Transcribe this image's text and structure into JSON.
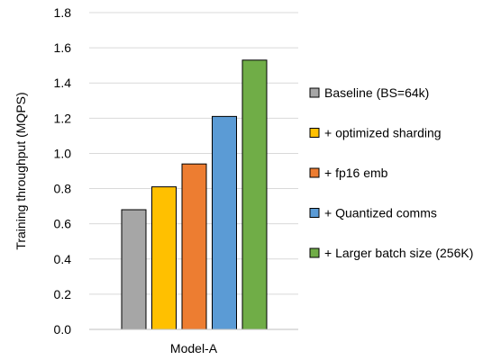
{
  "chart_data": {
    "type": "bar",
    "title": "",
    "xlabel": "",
    "ylabel": "Training throughput (MQPS)",
    "categories": [
      "Model-A"
    ],
    "ylim": [
      0,
      1.8
    ],
    "ytick_step": 0.2,
    "ytick_labels": [
      "0.0",
      "0.2",
      "0.4",
      "0.6",
      "0.8",
      "1.0",
      "1.2",
      "1.4",
      "1.6",
      "1.8"
    ],
    "grid": true,
    "legend_position": "right",
    "series": [
      {
        "name": "Baseline (BS=64k)",
        "values": [
          0.68
        ],
        "color": "#A6A6A6"
      },
      {
        "name": "+ optimized sharding",
        "values": [
          0.81
        ],
        "color": "#FFC000"
      },
      {
        "name": "+ fp16 emb",
        "values": [
          0.94
        ],
        "color": "#ED7D31"
      },
      {
        "name": "+ Quantized comms",
        "values": [
          1.21
        ],
        "color": "#5B9BD5"
      },
      {
        "name": "+ Larger batch size (256K)",
        "values": [
          1.53
        ],
        "color": "#70AD47"
      }
    ]
  }
}
